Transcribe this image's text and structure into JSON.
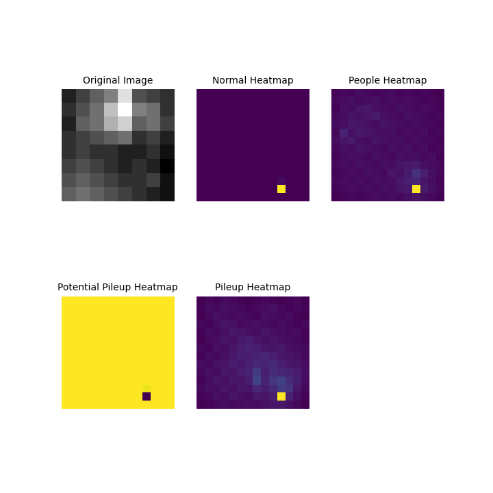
{
  "chart_data": [
    {
      "type": "image",
      "title": "Original Image",
      "tick_labels": false,
      "cells": [
        [
          0.25,
          0.35,
          0.45,
          0.55,
          0.85,
          0.4,
          0.35,
          0.3
        ],
        [
          0.3,
          0.4,
          0.5,
          0.75,
          0.95,
          0.55,
          0.5,
          0.3
        ],
        [
          0.25,
          0.45,
          0.5,
          0.7,
          0.8,
          0.45,
          0.5,
          0.35
        ],
        [
          0.3,
          0.35,
          0.4,
          0.45,
          0.5,
          0.3,
          0.35,
          0.25
        ],
        [
          0.3,
          0.35,
          0.3,
          0.3,
          0.25,
          0.25,
          0.3,
          0.2
        ],
        [
          0.35,
          0.4,
          0.35,
          0.3,
          0.25,
          0.3,
          0.25,
          0.15
        ],
        [
          0.4,
          0.45,
          0.4,
          0.35,
          0.3,
          0.3,
          0.35,
          0.2
        ],
        [
          0.45,
          0.5,
          0.45,
          0.4,
          0.35,
          0.3,
          0.25,
          0.2
        ]
      ]
    },
    {
      "type": "heatmap",
      "title": "Normal Heatmap",
      "tick_labels": false,
      "cells": [
        [
          0,
          0,
          0,
          0,
          0,
          0,
          0,
          0,
          0,
          0,
          0,
          0,
          0,
          0
        ],
        [
          0,
          0,
          0,
          0,
          0,
          0,
          0,
          0,
          0,
          0,
          0,
          0,
          0,
          0
        ],
        [
          0,
          0,
          0,
          0,
          0,
          0,
          0,
          0,
          0,
          0,
          0,
          0,
          0,
          0
        ],
        [
          0,
          0,
          0,
          0,
          0,
          0,
          0,
          0,
          0,
          0,
          0,
          0,
          0,
          0
        ],
        [
          0,
          0,
          0,
          0,
          0,
          0,
          0,
          0,
          0,
          0,
          0,
          0,
          0,
          0
        ],
        [
          0,
          0,
          0,
          0,
          0,
          0,
          0,
          0,
          0,
          0,
          0,
          0,
          0,
          0
        ],
        [
          0,
          0,
          0,
          0,
          0,
          0,
          0,
          0,
          0,
          0,
          0,
          0,
          0,
          0
        ],
        [
          0,
          0,
          0,
          0,
          0,
          0,
          0,
          0,
          0,
          0,
          0,
          0,
          0,
          0
        ],
        [
          0,
          0,
          0,
          0,
          0,
          0,
          0,
          0,
          0,
          0,
          0,
          0,
          0,
          0
        ],
        [
          0,
          0,
          0,
          0,
          0,
          0,
          0,
          0,
          0,
          0,
          0,
          0,
          0,
          0
        ],
        [
          0,
          0,
          0,
          0,
          0,
          0,
          0,
          0,
          0,
          0,
          0,
          0,
          0,
          0
        ],
        [
          0,
          0,
          0,
          0,
          0,
          0,
          0,
          0,
          0,
          0,
          0.03,
          0,
          0,
          0
        ],
        [
          0,
          0,
          0,
          0,
          0,
          0,
          0,
          0,
          0,
          0,
          1,
          0,
          0,
          0
        ],
        [
          0,
          0,
          0,
          0,
          0,
          0,
          0,
          0,
          0,
          0,
          0,
          0,
          0,
          0
        ]
      ]
    },
    {
      "type": "heatmap",
      "title": "People Heatmap",
      "tick_labels": false,
      "cells": [
        [
          0.05,
          0.06,
          0.05,
          0.07,
          0.06,
          0.05,
          0.06,
          0.07,
          0.05,
          0.06,
          0.05,
          0.06,
          0.05,
          0.04
        ],
        [
          0.06,
          0.07,
          0.08,
          0.06,
          0.07,
          0.08,
          0.06,
          0.07,
          0.06,
          0.07,
          0.06,
          0.05,
          0.06,
          0.05
        ],
        [
          0.05,
          0.08,
          0.07,
          0.09,
          0.1,
          0.08,
          0.07,
          0.06,
          0.08,
          0.07,
          0.06,
          0.07,
          0.06,
          0.05
        ],
        [
          0.06,
          0.07,
          0.09,
          0.08,
          0.09,
          0.11,
          0.08,
          0.07,
          0.06,
          0.08,
          0.07,
          0.06,
          0.05,
          0.06
        ],
        [
          0.07,
          0.08,
          0.1,
          0.09,
          0.08,
          0.07,
          0.09,
          0.08,
          0.07,
          0.06,
          0.07,
          0.06,
          0.06,
          0.05
        ],
        [
          0.06,
          0.13,
          0.08,
          0.1,
          0.09,
          0.08,
          0.07,
          0.08,
          0.06,
          0.07,
          0.06,
          0.07,
          0.05,
          0.06
        ],
        [
          0.07,
          0.09,
          0.11,
          0.08,
          0.07,
          0.09,
          0.08,
          0.07,
          0.08,
          0.06,
          0.07,
          0.06,
          0.06,
          0.05
        ],
        [
          0.06,
          0.08,
          0.07,
          0.09,
          0.08,
          0.07,
          0.06,
          0.08,
          0.07,
          0.08,
          0.06,
          0.07,
          0.05,
          0.06
        ],
        [
          0.05,
          0.07,
          0.08,
          0.07,
          0.06,
          0.08,
          0.07,
          0.06,
          0.08,
          0.07,
          0.08,
          0.06,
          0.07,
          0.05
        ],
        [
          0.06,
          0.07,
          0.06,
          0.08,
          0.07,
          0.06,
          0.08,
          0.07,
          0.09,
          0.1,
          0.11,
          0.08,
          0.07,
          0.06
        ],
        [
          0.05,
          0.06,
          0.07,
          0.06,
          0.08,
          0.07,
          0.06,
          0.09,
          0.08,
          0.11,
          0.18,
          0.12,
          0.08,
          0.06
        ],
        [
          0.06,
          0.07,
          0.06,
          0.07,
          0.06,
          0.08,
          0.07,
          0.08,
          0.1,
          0.12,
          0.14,
          0.09,
          0.07,
          0.05
        ],
        [
          0.05,
          0.06,
          0.07,
          0.06,
          0.07,
          0.06,
          0.08,
          0.07,
          0.09,
          0.1,
          1,
          0.11,
          0.08,
          0.06
        ],
        [
          0.04,
          0.05,
          0.06,
          0.05,
          0.06,
          0.07,
          0.06,
          0.07,
          0.06,
          0.08,
          0.09,
          0.07,
          0.06,
          0.05
        ]
      ]
    },
    {
      "type": "heatmap",
      "title": "Potential Pileup Heatmap",
      "tick_labels": false,
      "cells": [
        [
          1,
          1,
          1,
          1,
          1,
          1,
          1,
          1,
          1,
          1,
          1,
          1,
          1,
          1
        ],
        [
          1,
          1,
          1,
          1,
          1,
          1,
          1,
          1,
          1,
          1,
          1,
          1,
          1,
          1
        ],
        [
          1,
          1,
          1,
          1,
          1,
          1,
          1,
          1,
          1,
          1,
          1,
          1,
          1,
          1
        ],
        [
          1,
          1,
          1,
          1,
          1,
          1,
          1,
          1,
          1,
          1,
          1,
          1,
          1,
          1
        ],
        [
          1,
          1,
          1,
          1,
          1,
          1,
          1,
          1,
          1,
          1,
          1,
          1,
          1,
          1
        ],
        [
          1,
          1,
          1,
          1,
          1,
          1,
          1,
          1,
          1,
          1,
          1,
          1,
          1,
          1
        ],
        [
          1,
          1,
          1,
          1,
          1,
          1,
          1,
          1,
          1,
          1,
          1,
          1,
          1,
          1
        ],
        [
          1,
          1,
          1,
          1,
          1,
          1,
          1,
          1,
          1,
          1,
          1,
          1,
          1,
          1
        ],
        [
          1,
          1,
          1,
          1,
          1,
          1,
          1,
          1,
          1,
          1,
          1,
          1,
          1,
          1
        ],
        [
          1,
          1,
          1,
          1,
          1,
          1,
          1,
          1,
          1,
          1,
          1,
          1,
          1,
          1
        ],
        [
          1,
          1,
          1,
          1,
          1,
          1,
          1,
          1,
          1,
          1,
          1,
          1,
          1,
          1
        ],
        [
          1,
          1,
          1,
          1,
          1,
          1,
          1,
          1,
          1,
          1,
          0.97,
          1,
          1,
          1
        ],
        [
          1,
          1,
          1,
          1,
          1,
          1,
          1,
          1,
          1,
          1,
          0,
          1,
          1,
          1
        ],
        [
          1,
          1,
          1,
          1,
          1,
          1,
          1,
          1,
          1,
          1,
          1,
          1,
          1,
          1
        ]
      ]
    },
    {
      "type": "heatmap",
      "title": "Pileup Heatmap",
      "tick_labels": false,
      "cells": [
        [
          0.06,
          0.08,
          0.07,
          0.09,
          0.08,
          0.07,
          0.06,
          0.07,
          0.08,
          0.07,
          0.06,
          0.07,
          0.08,
          0.06
        ],
        [
          0.07,
          0.09,
          0.08,
          0.1,
          0.09,
          0.08,
          0.07,
          0.08,
          0.09,
          0.1,
          0.08,
          0.07,
          0.08,
          0.07
        ],
        [
          0.06,
          0.08,
          0.1,
          0.09,
          0.08,
          0.09,
          0.08,
          0.07,
          0.1,
          0.09,
          0.08,
          0.09,
          0.07,
          0.06
        ],
        [
          0.08,
          0.07,
          0.09,
          0.11,
          0.1,
          0.08,
          0.09,
          0.1,
          0.09,
          0.08,
          0.09,
          0.08,
          0.07,
          0.08
        ],
        [
          0.07,
          0.09,
          0.08,
          0.1,
          0.12,
          0.11,
          0.1,
          0.09,
          0.11,
          0.1,
          0.09,
          0.08,
          0.09,
          0.07
        ],
        [
          0.06,
          0.08,
          0.09,
          0.11,
          0.1,
          0.12,
          0.13,
          0.11,
          0.1,
          0.11,
          0.1,
          0.09,
          0.08,
          0.07
        ],
        [
          0.08,
          0.07,
          0.1,
          0.09,
          0.11,
          0.13,
          0.15,
          0.14,
          0.12,
          0.11,
          0.12,
          0.1,
          0.09,
          0.08
        ],
        [
          0.07,
          0.09,
          0.08,
          0.1,
          0.12,
          0.14,
          0.13,
          0.15,
          0.16,
          0.14,
          0.12,
          0.11,
          0.1,
          0.08
        ],
        [
          0.09,
          0.08,
          0.1,
          0.11,
          0.13,
          0.12,
          0.14,
          0.16,
          0.15,
          0.17,
          0.14,
          0.12,
          0.11,
          0.09
        ],
        [
          0.08,
          0.1,
          0.09,
          0.12,
          0.11,
          0.13,
          0.15,
          0.22,
          0.14,
          0.18,
          0.16,
          0.15,
          0.13,
          0.1
        ],
        [
          0.07,
          0.09,
          0.11,
          0.1,
          0.12,
          0.11,
          0.13,
          0.25,
          0.15,
          0.2,
          0.24,
          0.18,
          0.14,
          0.09
        ],
        [
          0.08,
          0.1,
          0.09,
          0.11,
          0.1,
          0.12,
          0.11,
          0.16,
          0.13,
          0.17,
          0.22,
          0.2,
          0.12,
          0.08
        ],
        [
          0.07,
          0.08,
          0.1,
          0.09,
          0.11,
          0.1,
          0.09,
          0.12,
          0.11,
          0.14,
          1,
          0.15,
          0.1,
          0.07
        ],
        [
          0.06,
          0.07,
          0.08,
          0.09,
          0.08,
          0.09,
          0.1,
          0.09,
          0.1,
          0.11,
          0.12,
          0.1,
          0.08,
          0.06
        ]
      ]
    }
  ]
}
